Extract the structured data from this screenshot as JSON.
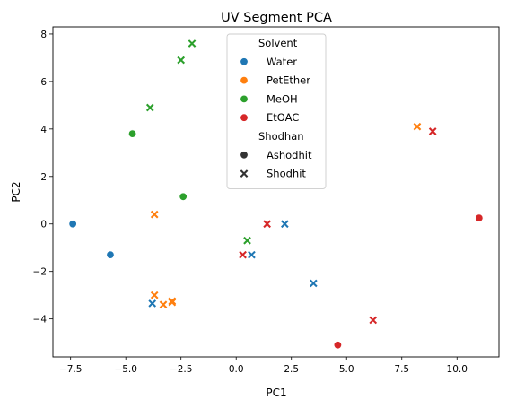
{
  "chart_data": {
    "type": "scatter",
    "title": "UV Segment PCA",
    "xlabel": "PC1",
    "ylabel": "PC2",
    "xlim": [
      -8.3,
      11.9
    ],
    "ylim": [
      -5.6,
      8.3
    ],
    "xticks": [
      -7.5,
      -5.0,
      -2.5,
      0.0,
      2.5,
      5.0,
      7.5,
      10.0
    ],
    "xtick_labels": [
      "−7.5",
      "−5.0",
      "−2.5",
      "0.0",
      "2.5",
      "5.0",
      "7.5",
      "10.0"
    ],
    "yticks": [
      -4,
      -2,
      0,
      2,
      4,
      6,
      8
    ],
    "ytick_labels": [
      "−4",
      "−2",
      "0",
      "2",
      "4",
      "6",
      "8"
    ],
    "grid": false,
    "legend_position": "top-center",
    "legend": {
      "hue_title": "Solvent",
      "style_title": "Shodhan",
      "hue_entries": [
        {
          "name": "Water",
          "color": "#1f77b4"
        },
        {
          "name": "PetEther",
          "color": "#ff7f0e"
        },
        {
          "name": "MeOH",
          "color": "#2ca02c"
        },
        {
          "name": "EtOAC",
          "color": "#d62728"
        }
      ],
      "style_entries": [
        {
          "name": "Ashodhit",
          "marker": "circle"
        },
        {
          "name": "Shodhit",
          "marker": "x"
        }
      ]
    },
    "series": [
      {
        "solvent": "Water",
        "shodhan": "Ashodhit",
        "color": "#1f77b4",
        "marker": "circle",
        "points": [
          [
            -7.4,
            0.0
          ],
          [
            -5.7,
            -1.3
          ]
        ]
      },
      {
        "solvent": "Water",
        "shodhan": "Shodhit",
        "color": "#1f77b4",
        "marker": "x",
        "points": [
          [
            -3.8,
            -3.35
          ],
          [
            0.7,
            -1.3
          ],
          [
            2.2,
            0.0
          ],
          [
            3.5,
            -2.5
          ]
        ]
      },
      {
        "solvent": "PetEther",
        "shodhan": "Shodhit",
        "color": "#ff7f0e",
        "marker": "x",
        "points": [
          [
            -3.7,
            0.4
          ],
          [
            -3.7,
            -3.0
          ],
          [
            -2.9,
            -3.25
          ],
          [
            -2.9,
            -3.3
          ],
          [
            -3.3,
            -3.4
          ],
          [
            8.2,
            4.1
          ]
        ]
      },
      {
        "solvent": "MeOH",
        "shodhan": "Ashodhit",
        "color": "#2ca02c",
        "marker": "circle",
        "points": [
          [
            -4.7,
            3.8
          ],
          [
            -2.4,
            1.15
          ]
        ]
      },
      {
        "solvent": "MeOH",
        "shodhan": "Shodhit",
        "color": "#2ca02c",
        "marker": "x",
        "points": [
          [
            -3.9,
            4.9
          ],
          [
            -2.5,
            6.9
          ],
          [
            -2.0,
            7.6
          ],
          [
            0.5,
            -0.7
          ]
        ]
      },
      {
        "solvent": "EtOAC",
        "shodhan": "Ashodhit",
        "color": "#d62728",
        "marker": "circle",
        "points": [
          [
            4.6,
            -5.1
          ],
          [
            11.0,
            0.25
          ]
        ]
      },
      {
        "solvent": "EtOAC",
        "shodhan": "Shodhit",
        "color": "#d62728",
        "marker": "x",
        "points": [
          [
            0.3,
            -1.3
          ],
          [
            1.4,
            0.0
          ],
          [
            6.2,
            -4.05
          ],
          [
            8.9,
            3.9
          ]
        ]
      }
    ]
  }
}
